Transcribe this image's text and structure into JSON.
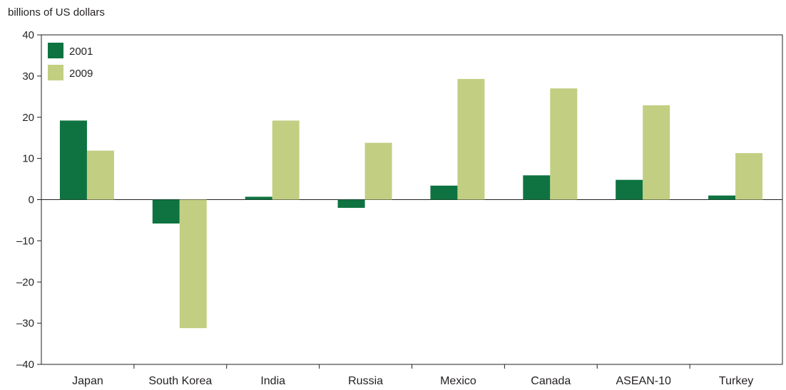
{
  "chart_data": {
    "type": "bar",
    "ylabel": "billions of US dollars",
    "categories": [
      "Japan",
      "South Korea",
      "India",
      "Russia",
      "Mexico",
      "Canada",
      "ASEAN-10",
      "Turkey"
    ],
    "series": [
      {
        "name": "2001",
        "values": [
          19.2,
          -5.8,
          0.7,
          -2.0,
          3.4,
          5.9,
          4.8,
          1.0
        ]
      },
      {
        "name": "2009",
        "values": [
          11.9,
          -31.2,
          19.2,
          13.8,
          29.3,
          27.0,
          22.9,
          11.3
        ]
      }
    ],
    "ylim": [
      -40,
      40
    ],
    "yticks": [
      40,
      30,
      20,
      10,
      0,
      -10,
      -20,
      -30,
      -40
    ],
    "ytick_labels": [
      "40",
      "30",
      "20",
      "10",
      "0",
      "–10",
      "–20",
      "–30",
      "–40"
    ],
    "grid": false,
    "legend_position": "top-left",
    "colors": {
      "2001": "#0e7340",
      "2009": "#c2cf83",
      "axis": "#231f20"
    }
  }
}
